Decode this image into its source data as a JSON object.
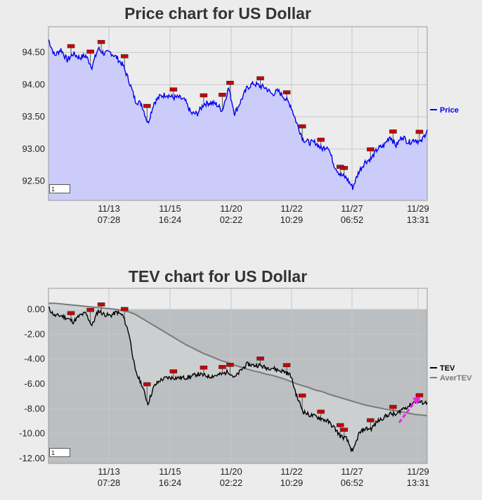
{
  "colors": {
    "price_line": "#0000ee",
    "price_fill": "#ccccfb",
    "tev_line": "#000000",
    "avertev_line": "#7a7a7a",
    "tev_fill": "#cdd0d2",
    "tev_dark_fill": "#bcbfc1",
    "marker": "#cc0000",
    "arrow": "#ee22ee",
    "grid": "#c6c6c6",
    "background": "#ececec"
  },
  "chart_data": [
    {
      "type": "area",
      "title": "Price chart for US Dollar",
      "x_ticks": [
        {
          "date": "11/13",
          "time": "07:28"
        },
        {
          "date": "11/15",
          "time": "16:24"
        },
        {
          "date": "11/20",
          "time": "02:22"
        },
        {
          "date": "11/22",
          "time": "10:29"
        },
        {
          "date": "11/27",
          "time": "06:52"
        },
        {
          "date": "11/29",
          "time": "13:31"
        }
      ],
      "y_ticks": [
        "94.50",
        "94.00",
        "93.50",
        "93.00",
        "92.50"
      ],
      "ylim": [
        92.2,
        94.9
      ],
      "grid": true,
      "legend": {
        "position": "right",
        "entries": [
          {
            "name": "Price",
            "color": "#0000ee"
          }
        ]
      },
      "input_value": "1",
      "series": [
        {
          "name": "Price",
          "values": [
            94.7,
            94.45,
            94.55,
            94.38,
            94.48,
            94.42,
            94.45,
            94.28,
            94.56,
            94.48,
            94.5,
            94.42,
            94.3,
            94.05,
            93.75,
            93.7,
            93.4,
            93.72,
            93.82,
            93.85,
            93.8,
            93.8,
            93.75,
            93.55,
            93.55,
            93.7,
            93.72,
            93.7,
            93.6,
            93.95,
            93.55,
            93.75,
            93.95,
            94.02,
            93.98,
            93.95,
            93.85,
            93.9,
            93.8,
            93.68,
            93.4,
            93.15,
            93.1,
            93.1,
            93.0,
            93.05,
            92.75,
            92.6,
            92.55,
            92.4,
            92.65,
            92.8,
            92.85,
            93.0,
            93.05,
            93.2,
            93.05,
            93.2,
            93.1,
            93.15,
            93.1,
            93.3
          ]
        }
      ],
      "markers": [
        0.06,
        0.11,
        0.14,
        0.2,
        0.26,
        0.33,
        0.41,
        0.46,
        0.48,
        0.56,
        0.63,
        0.67,
        0.72,
        0.77,
        0.78,
        0.85,
        0.91,
        0.98
      ]
    },
    {
      "type": "area",
      "title": "TEV chart for US Dollar",
      "x_ticks": [
        {
          "date": "11/13",
          "time": "07:28"
        },
        {
          "date": "11/15",
          "time": "16:24"
        },
        {
          "date": "11/20",
          "time": "02:22"
        },
        {
          "date": "11/22",
          "time": "10:29"
        },
        {
          "date": "11/27",
          "time": "06:52"
        },
        {
          "date": "11/29",
          "time": "13:31"
        }
      ],
      "y_ticks": [
        "0.00",
        "-2.00",
        "-4.00",
        "-6.00",
        "-8.00",
        "-10.00",
        "-12.00"
      ],
      "ylim": [
        -12.4,
        1.7
      ],
      "grid": true,
      "legend": {
        "position": "right",
        "entries": [
          {
            "name": "TEV",
            "color": "#000000"
          },
          {
            "name": "AverTEV",
            "color": "#7a7a7a"
          }
        ]
      },
      "input_value": "1",
      "series": [
        {
          "name": "TEV",
          "values": [
            0.1,
            -0.5,
            -0.5,
            -0.7,
            -1.0,
            -0.5,
            -0.3,
            -1.3,
            -0.1,
            -0.4,
            -0.5,
            -0.2,
            -0.5,
            -2.0,
            -5.0,
            -6.0,
            -7.6,
            -6.2,
            -5.7,
            -5.5,
            -5.5,
            -5.5,
            -5.5,
            -5.4,
            -5.2,
            -5.3,
            -5.4,
            -5.3,
            -5.2,
            -5.0,
            -5.5,
            -4.9,
            -4.4,
            -4.5,
            -4.5,
            -4.7,
            -4.7,
            -4.9,
            -5.0,
            -5.3,
            -7.0,
            -8.2,
            -8.5,
            -8.6,
            -8.8,
            -9.0,
            -9.5,
            -10.2,
            -10.4,
            -11.5,
            -10.0,
            -9.6,
            -9.6,
            -9.0,
            -8.7,
            -8.4,
            -8.5,
            -8.0,
            -7.8,
            -7.4,
            -7.5,
            -7.5
          ]
        },
        {
          "name": "AverTEV",
          "values": [
            0.5,
            0.5,
            0.45,
            0.4,
            0.35,
            0.3,
            0.25,
            0.2,
            0.15,
            0.1,
            0.05,
            0.0,
            -0.1,
            -0.2,
            -0.4,
            -0.7,
            -1.0,
            -1.3,
            -1.6,
            -1.9,
            -2.2,
            -2.5,
            -2.8,
            -3.05,
            -3.3,
            -3.55,
            -3.75,
            -3.95,
            -4.15,
            -4.3,
            -4.5,
            -4.65,
            -4.8,
            -4.95,
            -5.05,
            -5.2,
            -5.3,
            -5.45,
            -5.6,
            -5.8,
            -6.0,
            -6.15,
            -6.3,
            -6.5,
            -6.6,
            -6.8,
            -6.95,
            -7.1,
            -7.25,
            -7.4,
            -7.55,
            -7.7,
            -7.8,
            -7.9,
            -8.0,
            -8.1,
            -8.15,
            -8.25,
            -8.35,
            -8.45,
            -8.5,
            -8.55
          ]
        }
      ],
      "markers": [
        0.06,
        0.11,
        0.14,
        0.2,
        0.26,
        0.33,
        0.41,
        0.46,
        0.48,
        0.56,
        0.63,
        0.67,
        0.72,
        0.77,
        0.78,
        0.85,
        0.91,
        0.98
      ]
    }
  ]
}
